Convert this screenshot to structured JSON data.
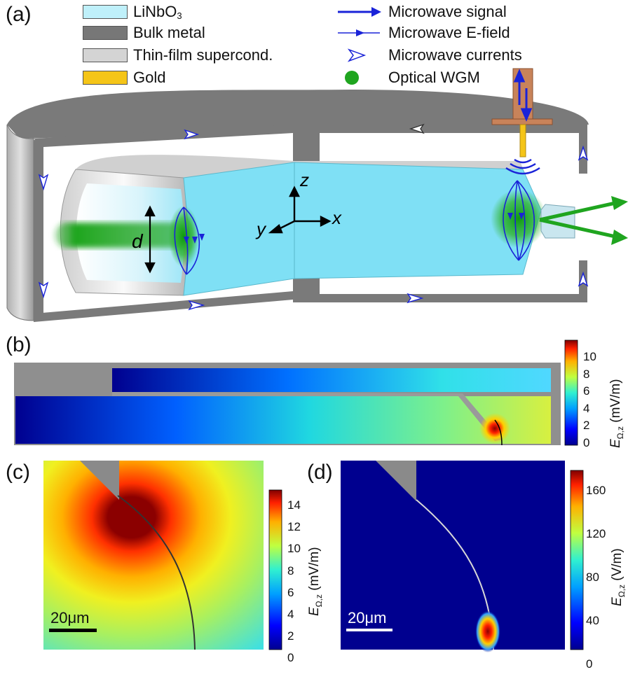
{
  "panels": {
    "a": "(a)",
    "b": "(b)",
    "c": "(c)",
    "d": "(d)"
  },
  "legend_left": [
    {
      "label": "LiNbO",
      "sub": "3",
      "color": "#bff0fa"
    },
    {
      "label": "Bulk metal",
      "sub": "",
      "color": "#777777"
    },
    {
      "label": "Thin-film supercond.",
      "sub": "",
      "color": "#d4d4d4"
    },
    {
      "label": "Gold",
      "sub": "",
      "color": "#f5c518"
    }
  ],
  "legend_right": [
    {
      "label": "Microwave signal",
      "icon": "thick-arrow-icon"
    },
    {
      "label": "Microwave E-field",
      "icon": "thin-arrow-icon"
    },
    {
      "label": "Microwave currents",
      "icon": "hollow-arrow-icon"
    },
    {
      "label": "Optical WGM",
      "icon": "green-dot-icon"
    }
  ],
  "axes": {
    "z": "z",
    "x": "x",
    "y": "y",
    "d": "d"
  },
  "colorbar_b": {
    "ticks": [
      "10",
      "8",
      "6",
      "4",
      "2",
      "0"
    ],
    "label_main": "E",
    "label_sub": "Ω,z",
    "unit": " (mV/m)"
  },
  "colorbar_c": {
    "ticks": [
      "14",
      "12",
      "10",
      "8",
      "6",
      "4",
      "2",
      "0"
    ],
    "label_main": "E",
    "label_sub": "Ω,z",
    "unit": " (mV/m)"
  },
  "colorbar_d": {
    "ticks": [
      "160",
      "120",
      "80",
      "40",
      "0"
    ],
    "label_main": "E",
    "label_sub": "Ω,z",
    "unit": " (V/m)"
  },
  "scalebar_c": "20μm",
  "scalebar_d": "20μm",
  "colors": {
    "linbo3": "#7fe0f5",
    "metal": "#7a7a7a",
    "supercond": "#d0d0d0",
    "gold": "#f5c518",
    "arrow": "#1a23d8",
    "wgm": "#1fa51f",
    "copper": "#c8835a"
  }
}
